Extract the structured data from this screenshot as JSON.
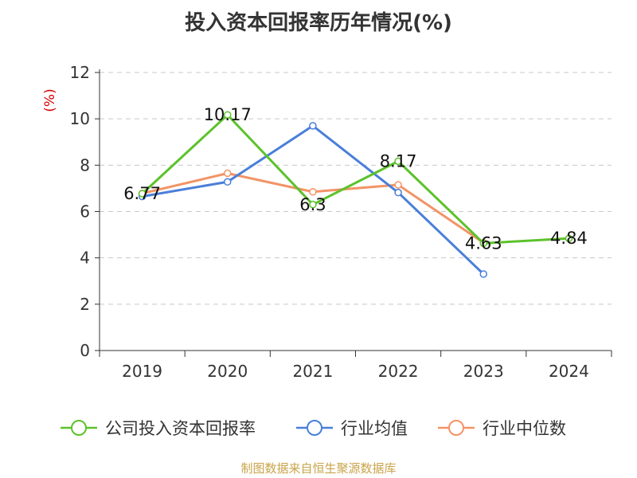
{
  "chart_data": {
    "type": "line",
    "title": "投入资本回报率历年情况(%)",
    "ylabel": "(%)",
    "xlabel": "",
    "categories": [
      "2019",
      "2020",
      "2021",
      "2022",
      "2023",
      "2024"
    ],
    "ylim": [
      0,
      12
    ],
    "yticks": [
      "0",
      "2",
      "4",
      "6",
      "8",
      "10",
      "12"
    ],
    "grid": true,
    "legend_position": "bottom",
    "series": [
      {
        "name": "公司投入资本回报率",
        "color": "#5cc22b",
        "values": [
          6.77,
          10.17,
          6.3,
          8.17,
          4.63,
          4.84
        ],
        "labels": [
          "6.77",
          "10.17",
          "6.3",
          "8.17",
          "4.63",
          "4.84"
        ]
      },
      {
        "name": "行业均值",
        "color": "#4a7fd9",
        "values": [
          6.65,
          7.28,
          9.7,
          6.82,
          3.3,
          null
        ],
        "labels": []
      },
      {
        "name": "行业中位数",
        "color": "#f29466",
        "values": [
          6.78,
          7.65,
          6.85,
          7.15,
          4.65,
          null
        ],
        "labels": []
      }
    ]
  },
  "source_note": "制图数据来自恒生聚源数据库"
}
